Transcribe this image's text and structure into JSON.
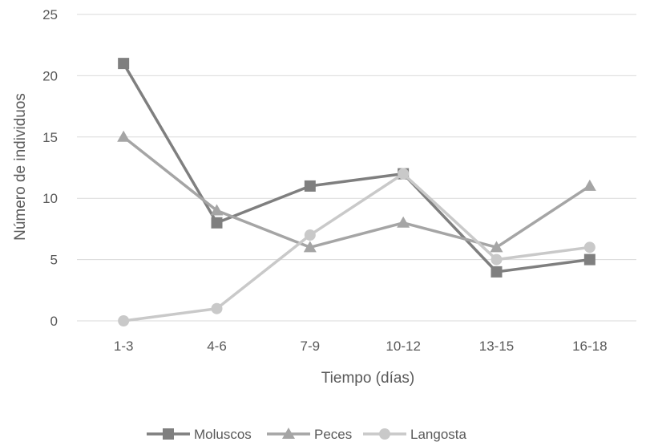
{
  "chart_data": {
    "type": "line",
    "title": "",
    "xlabel": "Tiempo (días)",
    "ylabel": "Número de individuos",
    "categories": [
      "1-3",
      "4-6",
      "7-9",
      "10-12",
      "13-15",
      "16-18"
    ],
    "ylim": [
      0,
      25
    ],
    "yticks": [
      0,
      5,
      10,
      15,
      20,
      25
    ],
    "grid": true,
    "legend_position": "bottom",
    "series": [
      {
        "name": "Moluscos",
        "values": [
          21,
          8,
          11,
          12,
          4,
          5
        ],
        "color": "#7f7f7f",
        "marker": "square"
      },
      {
        "name": "Peces",
        "values": [
          15,
          9,
          6,
          8,
          6,
          11
        ],
        "color": "#a5a5a5",
        "marker": "triangle"
      },
      {
        "name": "Langosta",
        "values": [
          0,
          1,
          7,
          12,
          5,
          6
        ],
        "color": "#c9c9c9",
        "marker": "circle"
      }
    ]
  }
}
